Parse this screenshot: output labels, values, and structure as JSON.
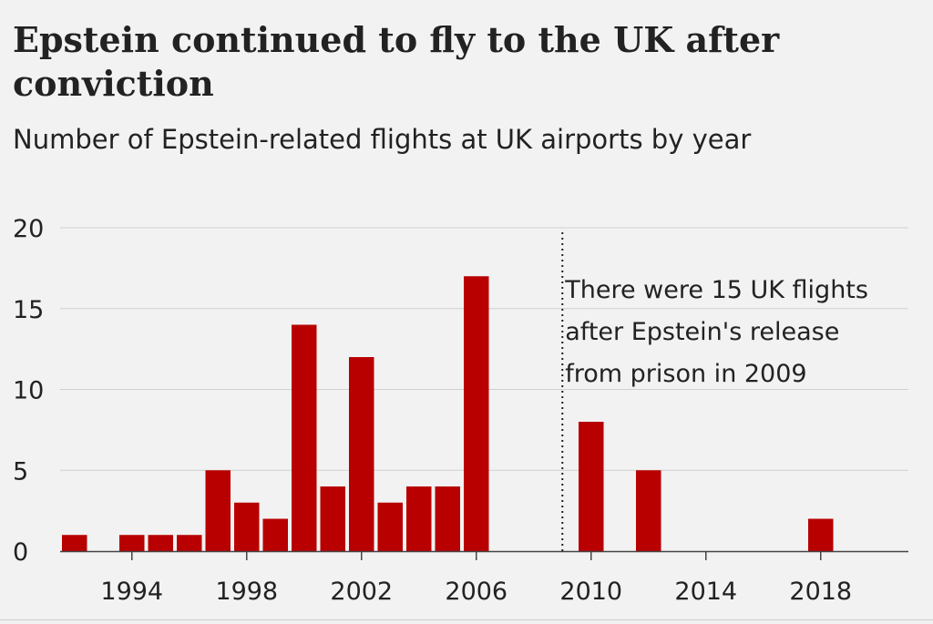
{
  "chart_data": {
    "type": "bar",
    "title": "Epstein continued to fly to the UK after conviction",
    "subtitle": "Number of Epstein-related flights at UK airports by year",
    "xlabel": "",
    "ylabel": "",
    "x": [
      1992,
      1993,
      1994,
      1995,
      1996,
      1997,
      1998,
      1999,
      2000,
      2001,
      2002,
      2003,
      2004,
      2005,
      2006,
      2007,
      2008,
      2009,
      2010,
      2011,
      2012,
      2013,
      2014,
      2015,
      2016,
      2017,
      2018,
      2019,
      2020
    ],
    "values": [
      1,
      0,
      1,
      1,
      1,
      5,
      3,
      2,
      14,
      4,
      12,
      3,
      4,
      4,
      17,
      0,
      0,
      0,
      8,
      0,
      5,
      0,
      0,
      0,
      0,
      0,
      2,
      0,
      0
    ],
    "xlim": [
      1992,
      2021
    ],
    "ylim": [
      0,
      20
    ],
    "yticks": [
      0,
      5,
      10,
      15,
      20
    ],
    "xticks": [
      1994,
      1998,
      2002,
      2006,
      2010,
      2014,
      2018
    ],
    "grid": true,
    "bar_color": "#b80000",
    "marker": {
      "x": 2009,
      "style": "dotted",
      "annotation_lines": [
        "There were 15 UK flights",
        "after Epstein's release",
        "from prison in 2009"
      ]
    }
  }
}
